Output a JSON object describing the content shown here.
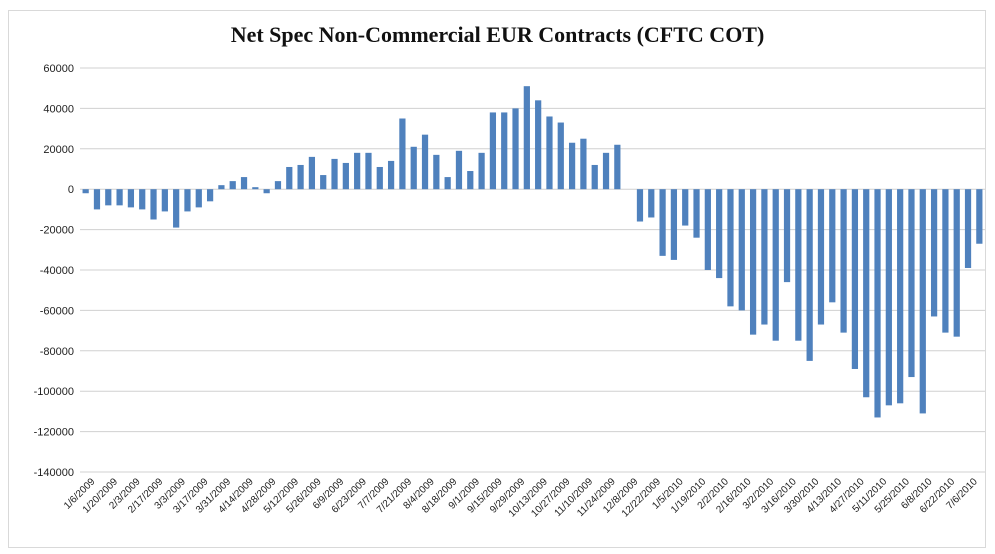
{
  "chart_data": {
    "type": "bar",
    "title": "Net Spec Non-Commercial EUR Contracts (CFTC COT)",
    "xlabel": "",
    "ylabel": "",
    "ylim": [
      -140000,
      60000
    ],
    "yticks": [
      60000,
      40000,
      20000,
      0,
      -20000,
      -40000,
      -60000,
      -80000,
      -100000,
      -120000,
      -140000
    ],
    "grid": true,
    "legend": "none",
    "bar_color": "#4f81bd",
    "x_tick_labels": [
      "1/6/2009",
      "1/20/2009",
      "2/3/2009",
      "2/17/2009",
      "3/3/2009",
      "3/17/2009",
      "3/31/2009",
      "4/14/2009",
      "4/28/2009",
      "5/12/2009",
      "5/26/2009",
      "6/9/2009",
      "6/23/2009",
      "7/7/2009",
      "7/21/2009",
      "8/4/2009",
      "8/18/2009",
      "9/1/2009",
      "9/15/2009",
      "9/29/2009",
      "10/13/2009",
      "10/27/2009",
      "11/10/2009",
      "11/24/2009",
      "12/8/2009",
      "12/22/2009",
      "1/5/2010",
      "1/19/2010",
      "2/2/2010",
      "2/16/2010",
      "3/2/2010",
      "3/16/2010",
      "3/30/2010",
      "4/13/2010",
      "4/27/2010",
      "5/11/2010",
      "5/25/2010",
      "6/8/2010",
      "6/22/2010",
      "7/6/2010"
    ],
    "values": [
      -2000,
      -10000,
      -8000,
      -8000,
      -9000,
      -10000,
      -15000,
      -11000,
      -19000,
      -11000,
      -9000,
      -6000,
      2000,
      4000,
      6000,
      1000,
      -2000,
      4000,
      11000,
      12000,
      16000,
      7000,
      15000,
      13000,
      18000,
      18000,
      11000,
      14000,
      35000,
      21000,
      27000,
      17000,
      6000,
      19000,
      9000,
      18000,
      38000,
      38000,
      40000,
      51000,
      44000,
      36000,
      33000,
      23000,
      25000,
      12000,
      18000,
      22000,
      null,
      -16000,
      -14000,
      -33000,
      -35000,
      -18000,
      -24000,
      -40000,
      -44000,
      -58000,
      -60000,
      -72000,
      -67000,
      -75000,
      -46000,
      -75000,
      -85000,
      -67000,
      -56000,
      -71000,
      -89000,
      -103000,
      -113000,
      -107000,
      -106000,
      -93000,
      -111000,
      -63000,
      -71000,
      -73000,
      -39000,
      -27000
    ]
  }
}
